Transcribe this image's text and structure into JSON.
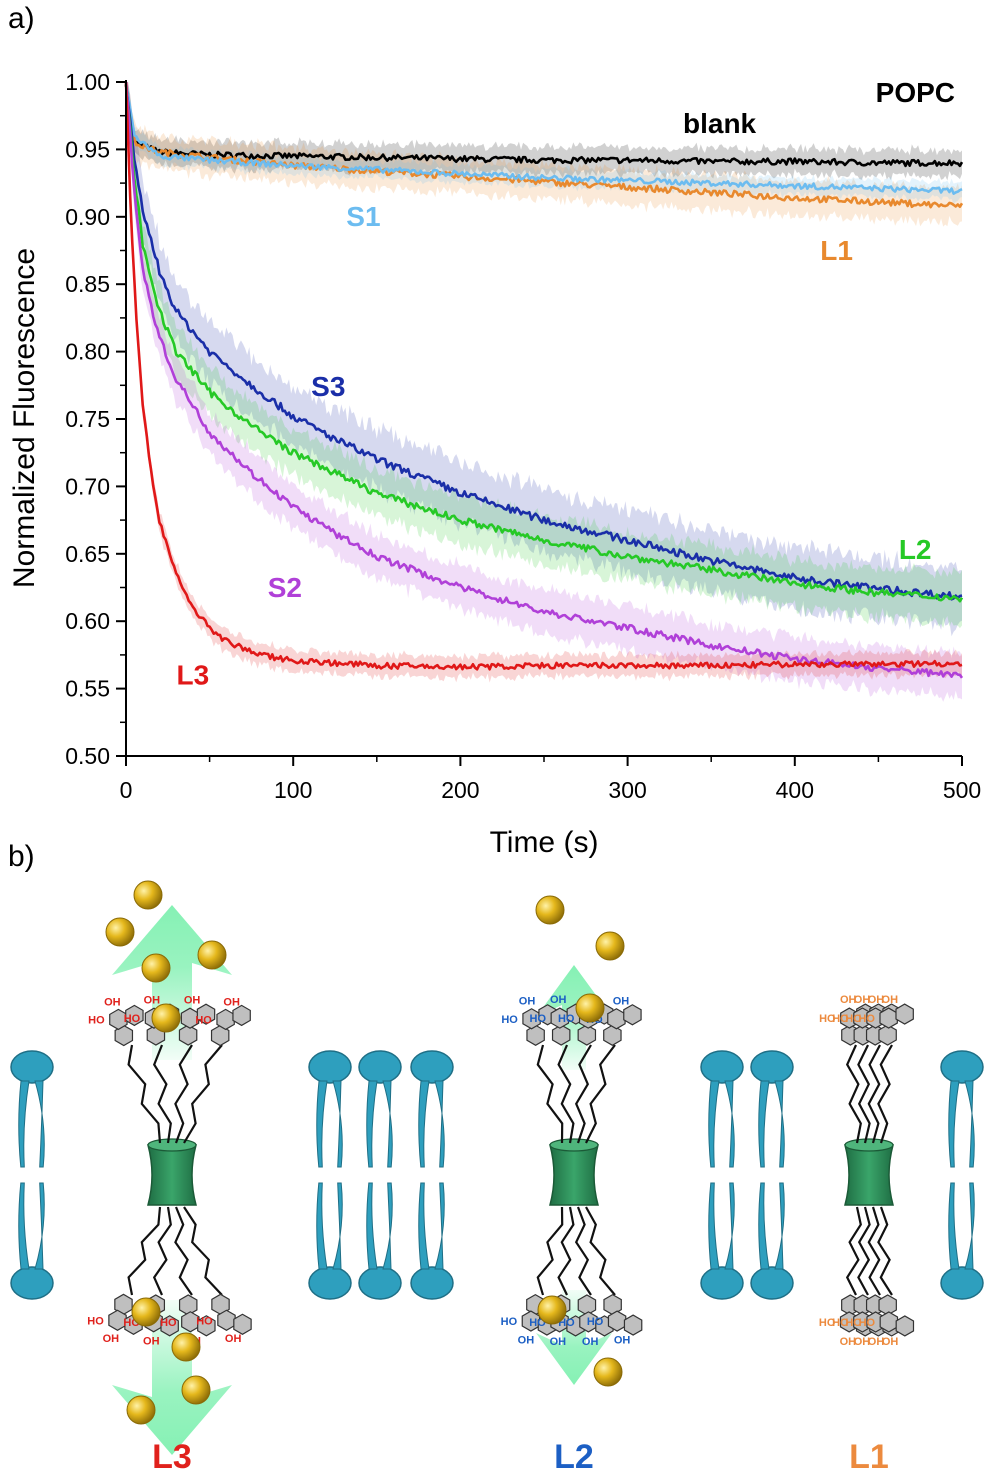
{
  "panel_a_label": "a)",
  "panel_b_label": "b)",
  "chart_data": {
    "type": "line",
    "title": "POPC",
    "xlabel": "Time (s)",
    "ylabel": "Normalized Fluorescence",
    "xlim": [
      0,
      500
    ],
    "ylim": [
      0.5,
      1.0
    ],
    "x_ticks": [
      "0",
      "100",
      "200",
      "300",
      "400",
      "500"
    ],
    "y_ticks": [
      "0.50",
      "0.55",
      "0.60",
      "0.65",
      "0.70",
      "0.75",
      "0.80",
      "0.85",
      "0.90",
      "0.95",
      "1.00"
    ],
    "grid": false,
    "series": [
      {
        "name": "blank",
        "color": "#000000",
        "band": 0.012,
        "x": [
          0,
          5,
          20,
          50,
          100,
          150,
          200,
          250,
          300,
          350,
          400,
          450,
          500
        ],
        "y": [
          1.0,
          0.955,
          0.948,
          0.946,
          0.945,
          0.944,
          0.943,
          0.942,
          0.942,
          0.941,
          0.941,
          0.94,
          0.94
        ]
      },
      {
        "name": "L1",
        "color": "#e8892e",
        "band": 0.016,
        "x": [
          0,
          5,
          20,
          50,
          100,
          150,
          200,
          250,
          300,
          350,
          400,
          450,
          500
        ],
        "y": [
          1.0,
          0.955,
          0.948,
          0.944,
          0.938,
          0.934,
          0.93,
          0.926,
          0.922,
          0.918,
          0.914,
          0.911,
          0.908
        ]
      },
      {
        "name": "S1",
        "color": "#6cbcf0",
        "band": 0.008,
        "x": [
          0,
          5,
          20,
          50,
          100,
          150,
          200,
          250,
          300,
          350,
          400,
          450,
          500
        ],
        "y": [
          1.0,
          0.96,
          0.945,
          0.942,
          0.938,
          0.935,
          0.932,
          0.929,
          0.927,
          0.925,
          0.923,
          0.921,
          0.919
        ]
      },
      {
        "name": "S3",
        "color": "#1a2ea8",
        "band": 0.028,
        "x": [
          0,
          5,
          10,
          20,
          30,
          50,
          75,
          100,
          125,
          150,
          200,
          250,
          300,
          350,
          400,
          450,
          500
        ],
        "y": [
          1.0,
          0.94,
          0.905,
          0.86,
          0.83,
          0.8,
          0.775,
          0.752,
          0.735,
          0.72,
          0.695,
          0.675,
          0.66,
          0.645,
          0.632,
          0.624,
          0.618
        ]
      },
      {
        "name": "L2",
        "color": "#26c926",
        "band": 0.022,
        "x": [
          0,
          5,
          10,
          20,
          30,
          50,
          75,
          100,
          125,
          150,
          200,
          250,
          300,
          350,
          400,
          450,
          500
        ],
        "y": [
          1.0,
          0.93,
          0.88,
          0.83,
          0.8,
          0.77,
          0.745,
          0.725,
          0.71,
          0.695,
          0.675,
          0.66,
          0.648,
          0.638,
          0.628,
          0.621,
          0.617
        ]
      },
      {
        "name": "S2",
        "color": "#b040d8",
        "band": 0.02,
        "x": [
          0,
          5,
          10,
          20,
          30,
          50,
          75,
          100,
          125,
          150,
          200,
          250,
          300,
          350,
          400,
          450,
          500
        ],
        "y": [
          1.0,
          0.92,
          0.86,
          0.81,
          0.78,
          0.74,
          0.71,
          0.685,
          0.665,
          0.648,
          0.625,
          0.607,
          0.595,
          0.582,
          0.572,
          0.565,
          0.56
        ]
      },
      {
        "name": "L3",
        "color": "#e01818",
        "band": 0.01,
        "x": [
          0,
          3,
          6,
          10,
          15,
          20,
          25,
          30,
          40,
          50,
          60,
          80,
          100,
          150,
          200,
          250,
          300,
          350,
          400,
          450,
          500
        ],
        "y": [
          1.0,
          0.9,
          0.83,
          0.76,
          0.71,
          0.675,
          0.655,
          0.635,
          0.61,
          0.595,
          0.585,
          0.575,
          0.571,
          0.567,
          0.566,
          0.567,
          0.567,
          0.567,
          0.568,
          0.568,
          0.569
        ]
      }
    ],
    "labels": [
      {
        "text": "blank",
        "color": "#000000",
        "x": 355,
        "y": 0.962
      },
      {
        "text": "S1",
        "color": "#6cbcf0",
        "x": 142,
        "y": 0.893
      },
      {
        "text": "L1",
        "color": "#e8892e",
        "x": 425,
        "y": 0.868
      },
      {
        "text": "S3",
        "color": "#1a2ea8",
        "x": 121,
        "y": 0.767
      },
      {
        "text": "L2",
        "color": "#26c926",
        "x": 472,
        "y": 0.646
      },
      {
        "text": "S2",
        "color": "#b040d8",
        "x": 95,
        "y": 0.618
      },
      {
        "text": "L3",
        "color": "#e01818",
        "x": 40,
        "y": 0.553
      }
    ]
  },
  "diagram": {
    "channels": [
      {
        "label": "L3",
        "color": "#e0211c",
        "oh_color": "#e0211c",
        "oh_text": "OH",
        "ho_text": "HO"
      },
      {
        "label": "L2",
        "color": "#1c5fc4",
        "oh_color": "#1c5fc4",
        "oh_text": "OH",
        "ho_text": "HO"
      },
      {
        "label": "L1",
        "color": "#ec8a3e",
        "oh_color": "#ec8a3e",
        "oh_text": "OH",
        "ho_text": "HO"
      }
    ],
    "colors": {
      "lipid": "#2e9fbe",
      "lipid_stroke": "#1f6f86",
      "channel": "#2f8f5a",
      "ion": "#e5b81c",
      "flux_arrow": "#7ff0b0",
      "aromatic": "#bfbfbf"
    }
  }
}
